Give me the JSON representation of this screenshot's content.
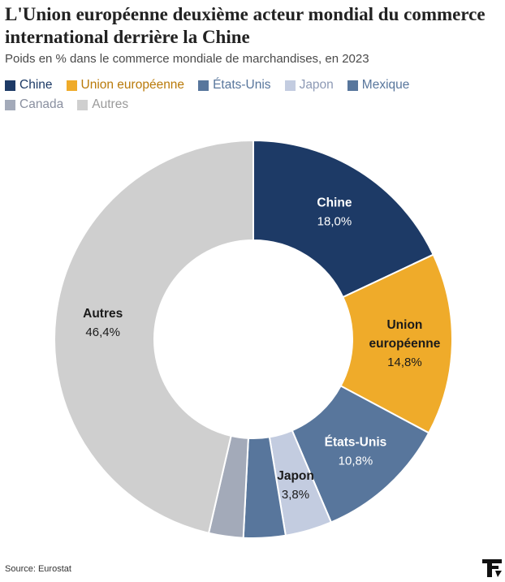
{
  "title": "L'Union européenne deuxième acteur mondial du commerce international derrière la Chine",
  "subtitle": "Poids en % dans le commerce mondiale de marchandises, en 2023",
  "source": "Source: Eurostat",
  "chart_data": {
    "type": "pie",
    "variant": "donut",
    "title": "L'Union européenne deuxième acteur mondial du commerce international derrière la Chine",
    "subtitle": "Poids en % dans le commerce mondiale de marchandises, en 2023",
    "unit": "%",
    "legend_position": "top",
    "slices": [
      {
        "name": "Chine",
        "value": 18.0,
        "value_label": "18,0%",
        "color": "#1d3a66",
        "legend_text_color": "#1d3a66",
        "label_lines": [
          "Chine"
        ],
        "label_color": "#ffffff",
        "show_label": true
      },
      {
        "name": "Union européenne",
        "value": 14.8,
        "value_label": "14,8%",
        "color": "#efab2a",
        "legend_text_color": "#b97a0a",
        "label_lines": [
          "Union",
          "européenne"
        ],
        "label_color": "#1a1a1a",
        "show_label": true
      },
      {
        "name": "États-Unis",
        "value": 10.8,
        "value_label": "10,8%",
        "color": "#58769c",
        "legend_text_color": "#58769c",
        "label_lines": [
          "États-Unis"
        ],
        "label_color": "#ffffff",
        "show_label": true
      },
      {
        "name": "Japon",
        "value": 3.8,
        "value_label": "3,8%",
        "color": "#c3cce0",
        "legend_text_color": "#8d9ab5",
        "label_lines": [
          "Japon"
        ],
        "label_color": "#1a1a1a",
        "show_label": true
      },
      {
        "name": "Mexique",
        "value": 3.4,
        "value_label": "",
        "color": "#58769c",
        "legend_text_color": "#58769c",
        "label_lines": [],
        "label_color": "#1a1a1a",
        "show_label": false
      },
      {
        "name": "Canada",
        "value": 2.8,
        "value_label": "",
        "color": "#a3aab9",
        "legend_text_color": "#8a90a0",
        "label_lines": [],
        "label_color": "#1a1a1a",
        "show_label": false
      },
      {
        "name": "Autres",
        "value": 46.4,
        "value_label": "46,4%",
        "color": "#cfcfcf",
        "legend_text_color": "#9a9a9a",
        "label_lines": [
          "Autres"
        ],
        "label_color": "#1a1a1a",
        "show_label": true
      }
    ]
  }
}
